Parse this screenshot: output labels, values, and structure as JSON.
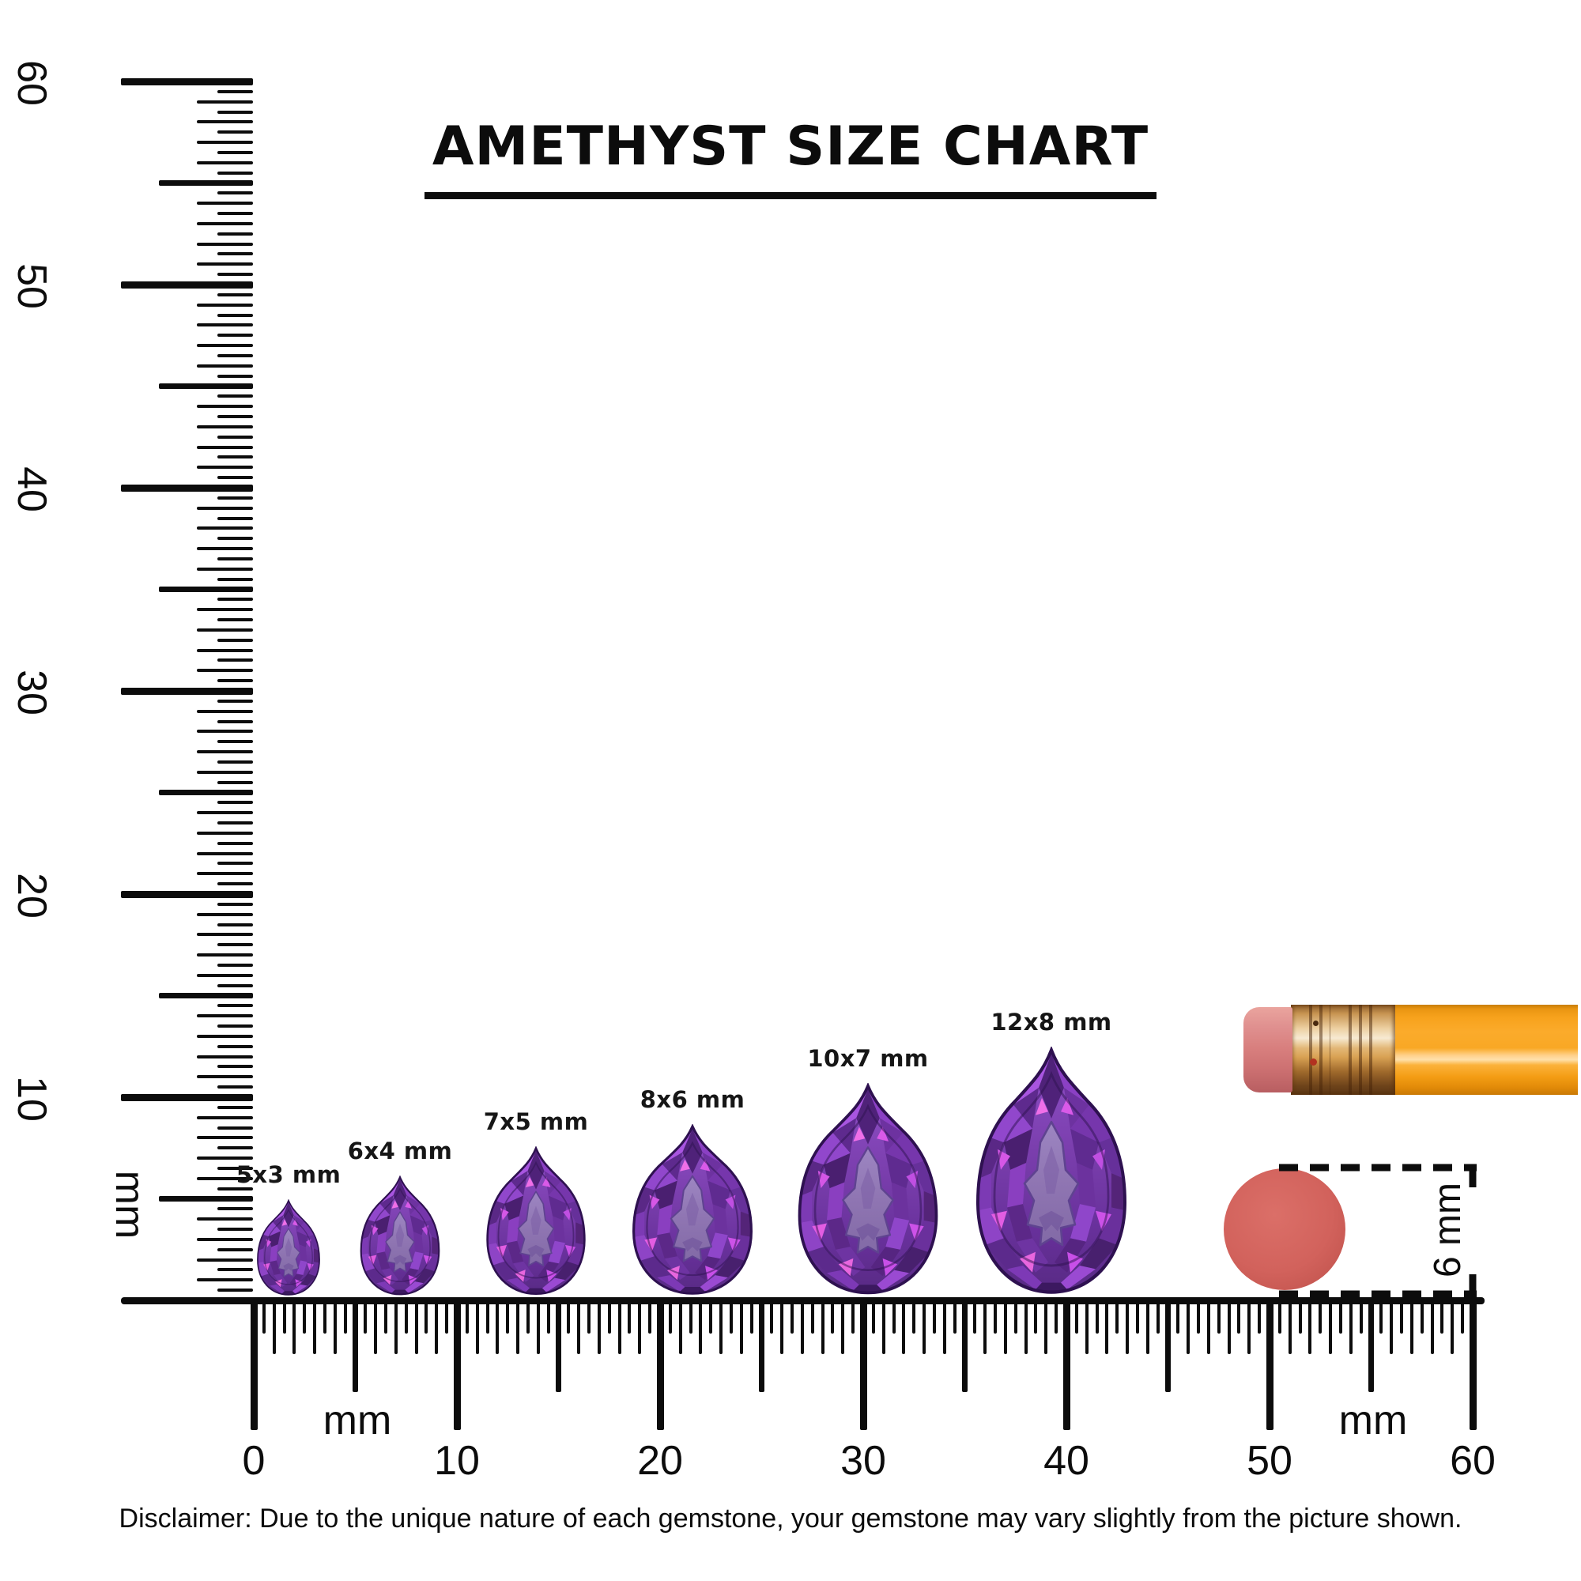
{
  "title": "AMETHYST SIZE CHART",
  "gems": [
    {
      "label": "5x3 mm",
      "length_mm": 5,
      "width_mm": 3
    },
    {
      "label": "6x4 mm",
      "length_mm": 6,
      "width_mm": 4
    },
    {
      "label": "7x5 mm",
      "length_mm": 7,
      "width_mm": 5
    },
    {
      "label": "8x6 mm",
      "length_mm": 8,
      "width_mm": 6
    },
    {
      "label": "10x7 mm",
      "length_mm": 10,
      "width_mm": 7
    },
    {
      "label": "12x8 mm",
      "length_mm": 12,
      "width_mm": 8
    }
  ],
  "rulers": {
    "horizontal": {
      "min_mm": 0,
      "max_mm": 60,
      "major_labels": [
        "0",
        "10",
        "20",
        "30",
        "40",
        "50",
        "60"
      ],
      "unit_label_left": "mm",
      "unit_label_right": "mm"
    },
    "vertical": {
      "min_mm": 0,
      "max_mm": 60,
      "major_labels": [
        "10",
        "20",
        "30",
        "40",
        "50",
        "60"
      ],
      "unit_label": "mm"
    }
  },
  "scale_reference": {
    "circle_dimension_label": "6 mm"
  },
  "disclaimer": "Disclaimer: Due to the unique nature of each gemstone, your gemstone may vary slightly from the picture shown.",
  "colors": {
    "ink": "#0c0c0c",
    "background": "#ffffff",
    "gem_primary": "#7b3fae",
    "gem_dark": "#4a1f70",
    "gem_table": "#8f75b2",
    "gem_highlight": "#d957e8",
    "pencil_body": "#f9a825",
    "pencil_ferrule": "#d9a254",
    "pencil_eraser": "#d87f7e",
    "reference_circle": "#d2625c"
  }
}
